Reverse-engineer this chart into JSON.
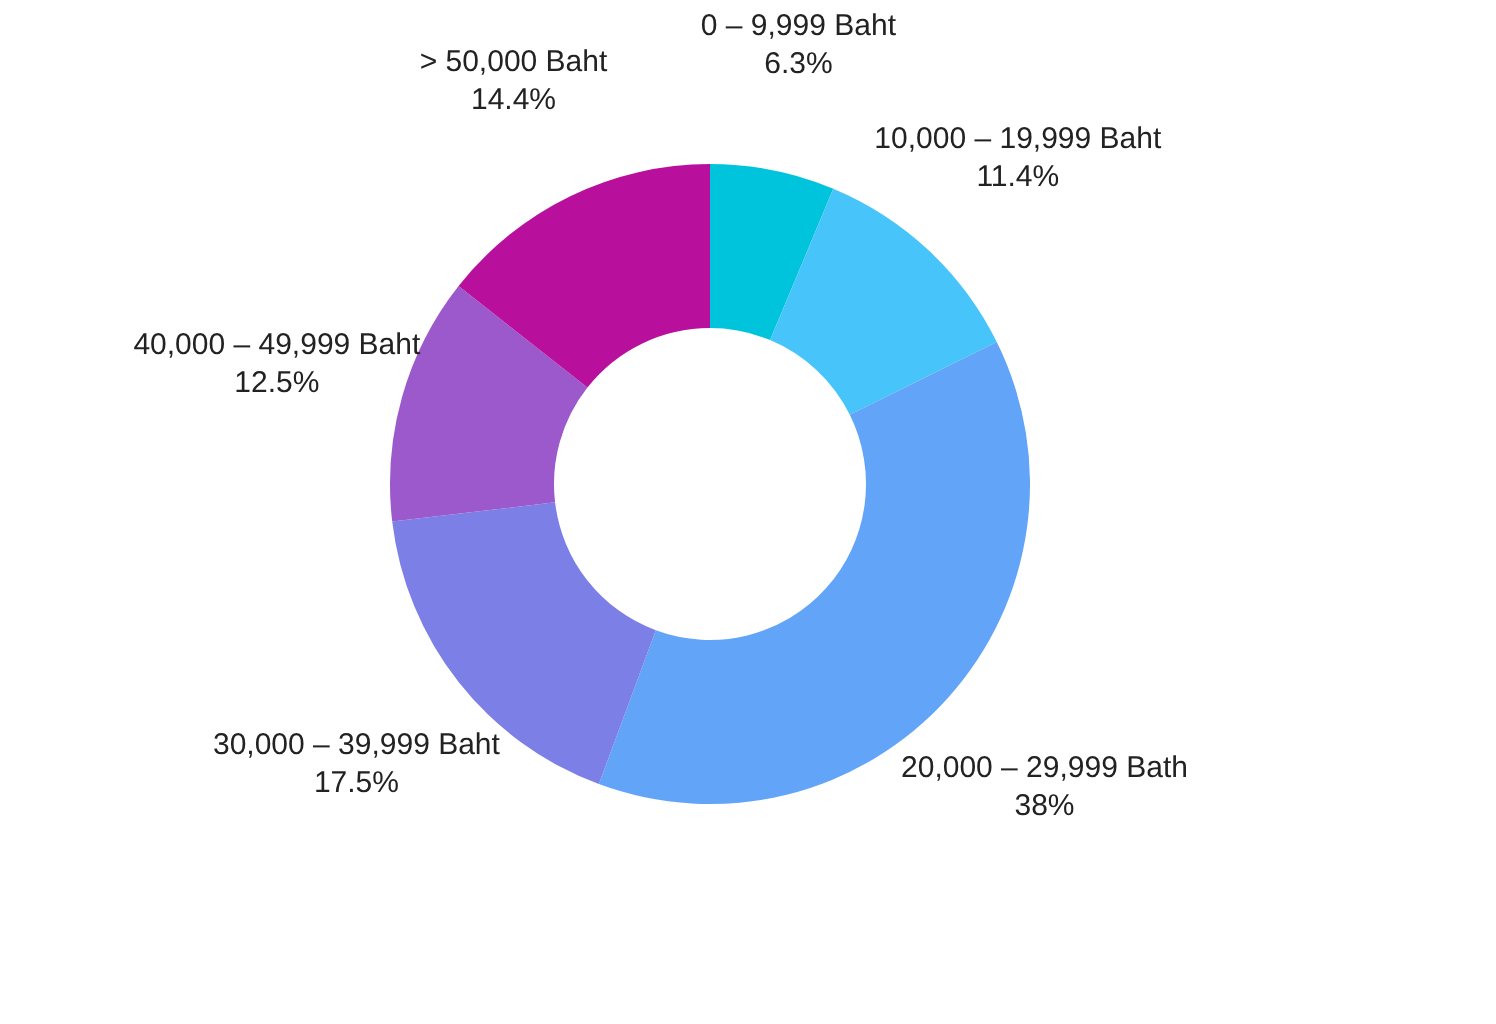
{
  "chart_data": {
    "type": "donut",
    "categories": [
      "0 – 9,999 Baht",
      "10,000 – 19,999 Baht",
      "20,000 – 29,999 Bath",
      "30,000 – 39,999 Baht",
      "40,000 – 49,999 Baht",
      "> 50,000 Baht"
    ],
    "values": [
      6.3,
      11.4,
      38,
      17.5,
      12.5,
      14.4
    ],
    "value_labels": [
      "6.3%",
      "11.4%",
      "38%",
      "17.5%",
      "12.5%",
      "14.4%"
    ],
    "colors": [
      "#00c4dc",
      "#47c5fb",
      "#62a4f8",
      "#7b7fe6",
      "#9b59cc",
      "#b8109c"
    ],
    "legend": false
  }
}
